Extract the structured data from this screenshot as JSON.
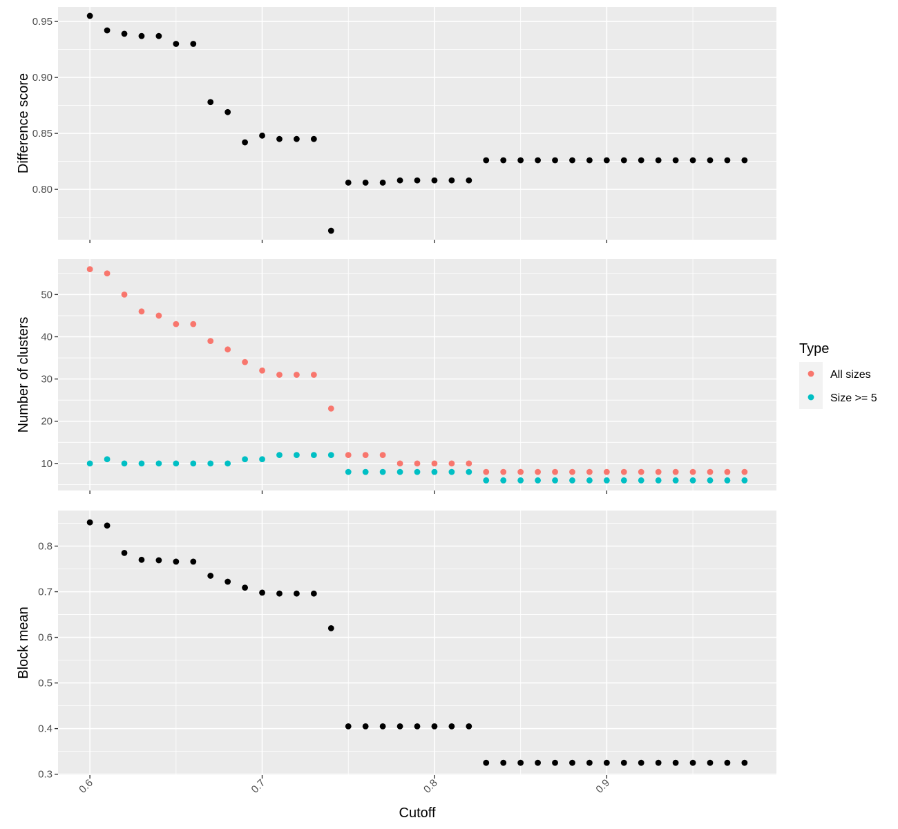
{
  "chart_data": [
    {
      "type": "scatter",
      "facet": "top",
      "xlabel": "",
      "ylabel": "Difference score",
      "ylim": [
        0.755,
        0.963
      ],
      "yticks": [
        0.8,
        0.85,
        0.9,
        0.95
      ],
      "ytick_labels": [
        "0.80",
        "0.85",
        "0.90",
        "0.95"
      ],
      "series": [
        {
          "color": "#000000",
          "points": [
            [
              0.6,
              0.955
            ],
            [
              0.61,
              0.942
            ],
            [
              0.62,
              0.939
            ],
            [
              0.63,
              0.937
            ],
            [
              0.64,
              0.937
            ],
            [
              0.65,
              0.93
            ],
            [
              0.66,
              0.93
            ],
            [
              0.67,
              0.878
            ],
            [
              0.68,
              0.869
            ],
            [
              0.69,
              0.842
            ],
            [
              0.7,
              0.848
            ],
            [
              0.71,
              0.845
            ],
            [
              0.72,
              0.845
            ],
            [
              0.73,
              0.845
            ],
            [
              0.74,
              0.763
            ],
            [
              0.75,
              0.806
            ],
            [
              0.76,
              0.806
            ],
            [
              0.77,
              0.806
            ],
            [
              0.78,
              0.808
            ],
            [
              0.79,
              0.808
            ],
            [
              0.8,
              0.808
            ],
            [
              0.81,
              0.808
            ],
            [
              0.82,
              0.808
            ],
            [
              0.83,
              0.826
            ],
            [
              0.84,
              0.826
            ],
            [
              0.85,
              0.826
            ],
            [
              0.86,
              0.826
            ],
            [
              0.87,
              0.826
            ],
            [
              0.88,
              0.826
            ],
            [
              0.89,
              0.826
            ],
            [
              0.9,
              0.826
            ],
            [
              0.91,
              0.826
            ],
            [
              0.92,
              0.826
            ],
            [
              0.93,
              0.826
            ],
            [
              0.94,
              0.826
            ],
            [
              0.95,
              0.826
            ],
            [
              0.96,
              0.826
            ],
            [
              0.97,
              0.826
            ],
            [
              0.98,
              0.826
            ]
          ]
        }
      ]
    },
    {
      "type": "scatter",
      "facet": "middle",
      "xlabel": "",
      "ylabel": "Number of clusters",
      "ylim": [
        3.6,
        58.4
      ],
      "yticks": [
        10,
        20,
        30,
        40,
        50
      ],
      "ytick_labels": [
        "10",
        "20",
        "30",
        "40",
        "50"
      ],
      "series": [
        {
          "name": "All sizes",
          "color": "#F8766D",
          "points": [
            [
              0.6,
              56
            ],
            [
              0.61,
              55
            ],
            [
              0.62,
              50
            ],
            [
              0.63,
              46
            ],
            [
              0.64,
              45
            ],
            [
              0.65,
              43
            ],
            [
              0.66,
              43
            ],
            [
              0.67,
              39
            ],
            [
              0.68,
              37
            ],
            [
              0.69,
              34
            ],
            [
              0.7,
              32
            ],
            [
              0.71,
              31
            ],
            [
              0.72,
              31
            ],
            [
              0.73,
              31
            ],
            [
              0.74,
              23
            ],
            [
              0.75,
              12
            ],
            [
              0.76,
              12
            ],
            [
              0.77,
              12
            ],
            [
              0.78,
              10
            ],
            [
              0.79,
              10
            ],
            [
              0.8,
              10
            ],
            [
              0.81,
              10
            ],
            [
              0.82,
              10
            ],
            [
              0.83,
              8
            ],
            [
              0.84,
              8
            ],
            [
              0.85,
              8
            ],
            [
              0.86,
              8
            ],
            [
              0.87,
              8
            ],
            [
              0.88,
              8
            ],
            [
              0.89,
              8
            ],
            [
              0.9,
              8
            ],
            [
              0.91,
              8
            ],
            [
              0.92,
              8
            ],
            [
              0.93,
              8
            ],
            [
              0.94,
              8
            ],
            [
              0.95,
              8
            ],
            [
              0.96,
              8
            ],
            [
              0.97,
              8
            ],
            [
              0.98,
              8
            ]
          ]
        },
        {
          "name": "Size >= 5",
          "color": "#00BFC4",
          "points": [
            [
              0.6,
              10
            ],
            [
              0.61,
              11
            ],
            [
              0.62,
              10
            ],
            [
              0.63,
              10
            ],
            [
              0.64,
              10
            ],
            [
              0.65,
              10
            ],
            [
              0.66,
              10
            ],
            [
              0.67,
              10
            ],
            [
              0.68,
              10
            ],
            [
              0.69,
              11
            ],
            [
              0.7,
              11
            ],
            [
              0.71,
              12
            ],
            [
              0.72,
              12
            ],
            [
              0.73,
              12
            ],
            [
              0.74,
              12
            ],
            [
              0.75,
              8
            ],
            [
              0.76,
              8
            ],
            [
              0.77,
              8
            ],
            [
              0.78,
              8
            ],
            [
              0.79,
              8
            ],
            [
              0.8,
              8
            ],
            [
              0.81,
              8
            ],
            [
              0.82,
              8
            ],
            [
              0.83,
              6
            ],
            [
              0.84,
              6
            ],
            [
              0.85,
              6
            ],
            [
              0.86,
              6
            ],
            [
              0.87,
              6
            ],
            [
              0.88,
              6
            ],
            [
              0.89,
              6
            ],
            [
              0.9,
              6
            ],
            [
              0.91,
              6
            ],
            [
              0.92,
              6
            ],
            [
              0.93,
              6
            ],
            [
              0.94,
              6
            ],
            [
              0.95,
              6
            ],
            [
              0.96,
              6
            ],
            [
              0.97,
              6
            ],
            [
              0.98,
              6
            ]
          ]
        }
      ]
    },
    {
      "type": "scatter",
      "facet": "bottom",
      "xlabel": "Cutoff",
      "ylabel": "Block mean",
      "ylim": [
        0.298,
        0.878
      ],
      "yticks": [
        0.3,
        0.4,
        0.5,
        0.6,
        0.7,
        0.8
      ],
      "ytick_labels": [
        "0.3",
        "0.4",
        "0.5",
        "0.6",
        "0.7",
        "0.8"
      ],
      "series": [
        {
          "color": "#000000",
          "points": [
            [
              0.6,
              0.852
            ],
            [
              0.61,
              0.845
            ],
            [
              0.62,
              0.785
            ],
            [
              0.63,
              0.77
            ],
            [
              0.64,
              0.769
            ],
            [
              0.65,
              0.766
            ],
            [
              0.66,
              0.766
            ],
            [
              0.67,
              0.735
            ],
            [
              0.68,
              0.722
            ],
            [
              0.69,
              0.709
            ],
            [
              0.7,
              0.698
            ],
            [
              0.71,
              0.696
            ],
            [
              0.72,
              0.696
            ],
            [
              0.73,
              0.696
            ],
            [
              0.74,
              0.62
            ],
            [
              0.75,
              0.405
            ],
            [
              0.76,
              0.405
            ],
            [
              0.77,
              0.405
            ],
            [
              0.78,
              0.405
            ],
            [
              0.79,
              0.405
            ],
            [
              0.8,
              0.405
            ],
            [
              0.81,
              0.405
            ],
            [
              0.82,
              0.405
            ],
            [
              0.83,
              0.325
            ],
            [
              0.84,
              0.325
            ],
            [
              0.85,
              0.325
            ],
            [
              0.86,
              0.325
            ],
            [
              0.87,
              0.325
            ],
            [
              0.88,
              0.325
            ],
            [
              0.89,
              0.325
            ],
            [
              0.9,
              0.325
            ],
            [
              0.91,
              0.325
            ],
            [
              0.92,
              0.325
            ],
            [
              0.93,
              0.325
            ],
            [
              0.94,
              0.325
            ],
            [
              0.95,
              0.325
            ],
            [
              0.96,
              0.325
            ],
            [
              0.97,
              0.325
            ],
            [
              0.98,
              0.325
            ]
          ]
        }
      ]
    }
  ],
  "x_axis": {
    "xlim": [
      0.5815,
      0.9985
    ],
    "xticks": [
      0.6,
      0.7,
      0.8,
      0.9
    ],
    "xtick_labels": [
      "0.6",
      "0.7",
      "0.8",
      "0.9"
    ],
    "title": "Cutoff"
  },
  "legend": {
    "title": "Type",
    "placement": "right",
    "items": [
      {
        "label": "All sizes",
        "color": "#F8766D"
      },
      {
        "label": "Size >= 5",
        "color": "#00BFC4"
      }
    ]
  }
}
